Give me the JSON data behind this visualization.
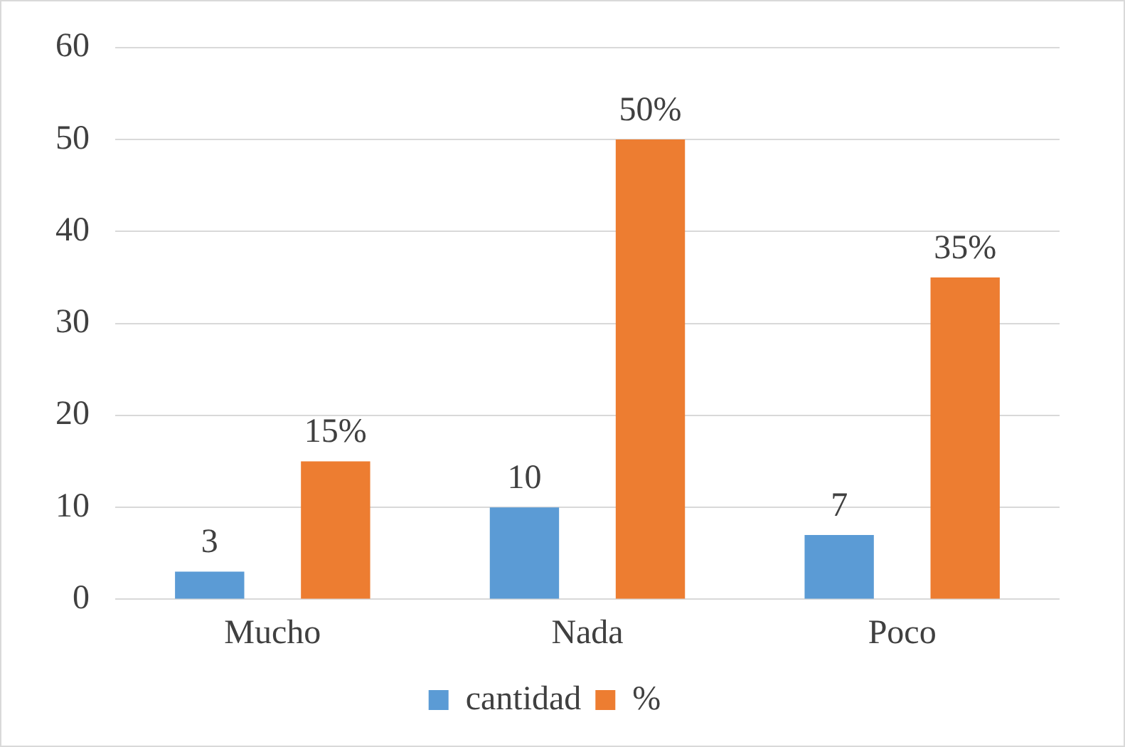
{
  "chart_data": {
    "type": "bar",
    "categories": [
      "Mucho",
      "Nada",
      "Poco"
    ],
    "series": [
      {
        "name": "cantidad",
        "color": "#5b9bd5",
        "values": [
          3,
          10,
          7
        ],
        "value_labels": [
          "3",
          "10",
          "7"
        ]
      },
      {
        "name": "%",
        "color": "#ed7d31",
        "values": [
          15,
          50,
          35
        ],
        "value_labels": [
          "15%",
          "50%",
          "35%"
        ]
      }
    ],
    "ylim": [
      0,
      60
    ],
    "yticks": [
      0,
      10,
      20,
      30,
      40,
      50,
      60
    ],
    "grid": "y",
    "legend": "bottom"
  }
}
